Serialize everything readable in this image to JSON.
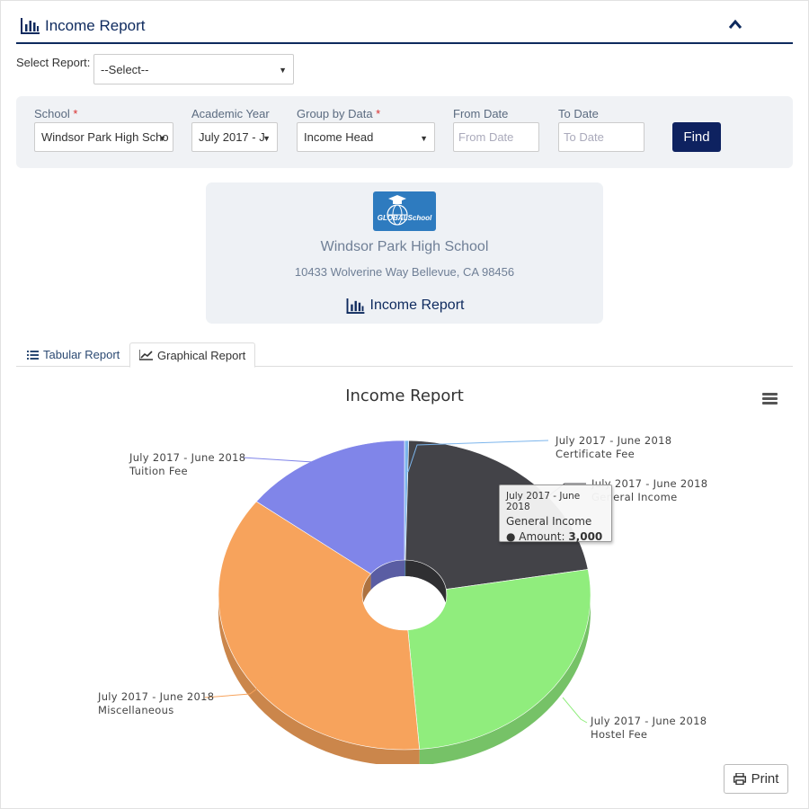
{
  "header": {
    "title": "Income Report",
    "collapse_icon": "chevron-up-icon"
  },
  "select_report": {
    "label": "Select Report:",
    "value": "--Select--"
  },
  "filters": {
    "school_label": "School",
    "school_value": "Windsor Park High Scho",
    "year_label": "Academic Year",
    "year_value": "July 2017 - J",
    "group_label": "Group by Data",
    "group_value": "Income Head",
    "from_label": "From Date",
    "from_placeholder": "From Date",
    "to_label": "To Date",
    "to_placeholder": "To Date",
    "required_mark": "*",
    "find_label": "Find"
  },
  "school_card": {
    "logo_text": "GLOBALSchool",
    "name": "Windsor Park High School",
    "address": "10433 Wolverine Way Bellevue, CA 98456",
    "report_title": "Income Report"
  },
  "tabs": [
    {
      "label": "Tabular Report",
      "icon": "list-icon",
      "active": false
    },
    {
      "label": "Graphical Report",
      "icon": "line-chart-icon",
      "active": true
    }
  ],
  "chart_data": {
    "type": "pie",
    "variant": "3d-donut",
    "title": "Income Report",
    "slices": [
      {
        "label": "July 2017 - June 2018",
        "name": "Certificate Fee",
        "value": 50,
        "color": "#7cb5ec"
      },
      {
        "label": "July 2017 - June 2018",
        "name": "General Income",
        "value": 3000,
        "color": "#434348"
      },
      {
        "label": "July 2017 - June 2018",
        "name": "Hostel Fee",
        "value": 3600,
        "color": "#90ed7d"
      },
      {
        "label": "July 2017 - June 2018",
        "name": "Miscellaneous",
        "value": 5000,
        "color": "#f7a35c"
      },
      {
        "label": "July 2017 - June 2018",
        "name": "Tuition Fee",
        "value": 2000,
        "color": "#8085e9"
      }
    ],
    "tooltip": {
      "header": "July 2017 - June 2018",
      "name": "General Income",
      "amount_label": "Amount:",
      "amount": "3,000"
    }
  },
  "print_label": "Print"
}
